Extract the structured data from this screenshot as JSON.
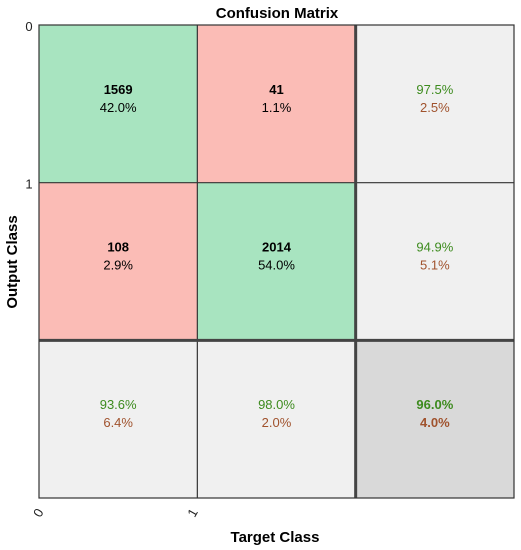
{
  "chart_data": {
    "type": "heatmap",
    "title": "Confusion Matrix",
    "xlabel": "Target Class",
    "ylabel": "Output Class",
    "classes": [
      "0",
      "1"
    ],
    "cells": [
      [
        {
          "count": "1569",
          "pct": "42.0%"
        },
        {
          "count": "41",
          "pct": "1.1%"
        }
      ],
      [
        {
          "count": "108",
          "pct": "2.9%"
        },
        {
          "count": "2014",
          "pct": "54.0%"
        }
      ]
    ],
    "row_summary": [
      {
        "correct": "97.5%",
        "incorrect": "2.5%"
      },
      {
        "correct": "94.9%",
        "incorrect": "5.1%"
      }
    ],
    "col_summary": [
      {
        "correct": "93.6%",
        "incorrect": "6.4%"
      },
      {
        "correct": "98.0%",
        "incorrect": "2.0%"
      }
    ],
    "overall": {
      "correct": "96.0%",
      "incorrect": "4.0%"
    },
    "colors": {
      "correct": "#a8e4c0",
      "incorrect": "#fbbcb6",
      "summary": "#f0f0f0",
      "overall": "#d9d9d9",
      "good_text": "#3d8b1e",
      "bad_text": "#a0522d"
    }
  }
}
